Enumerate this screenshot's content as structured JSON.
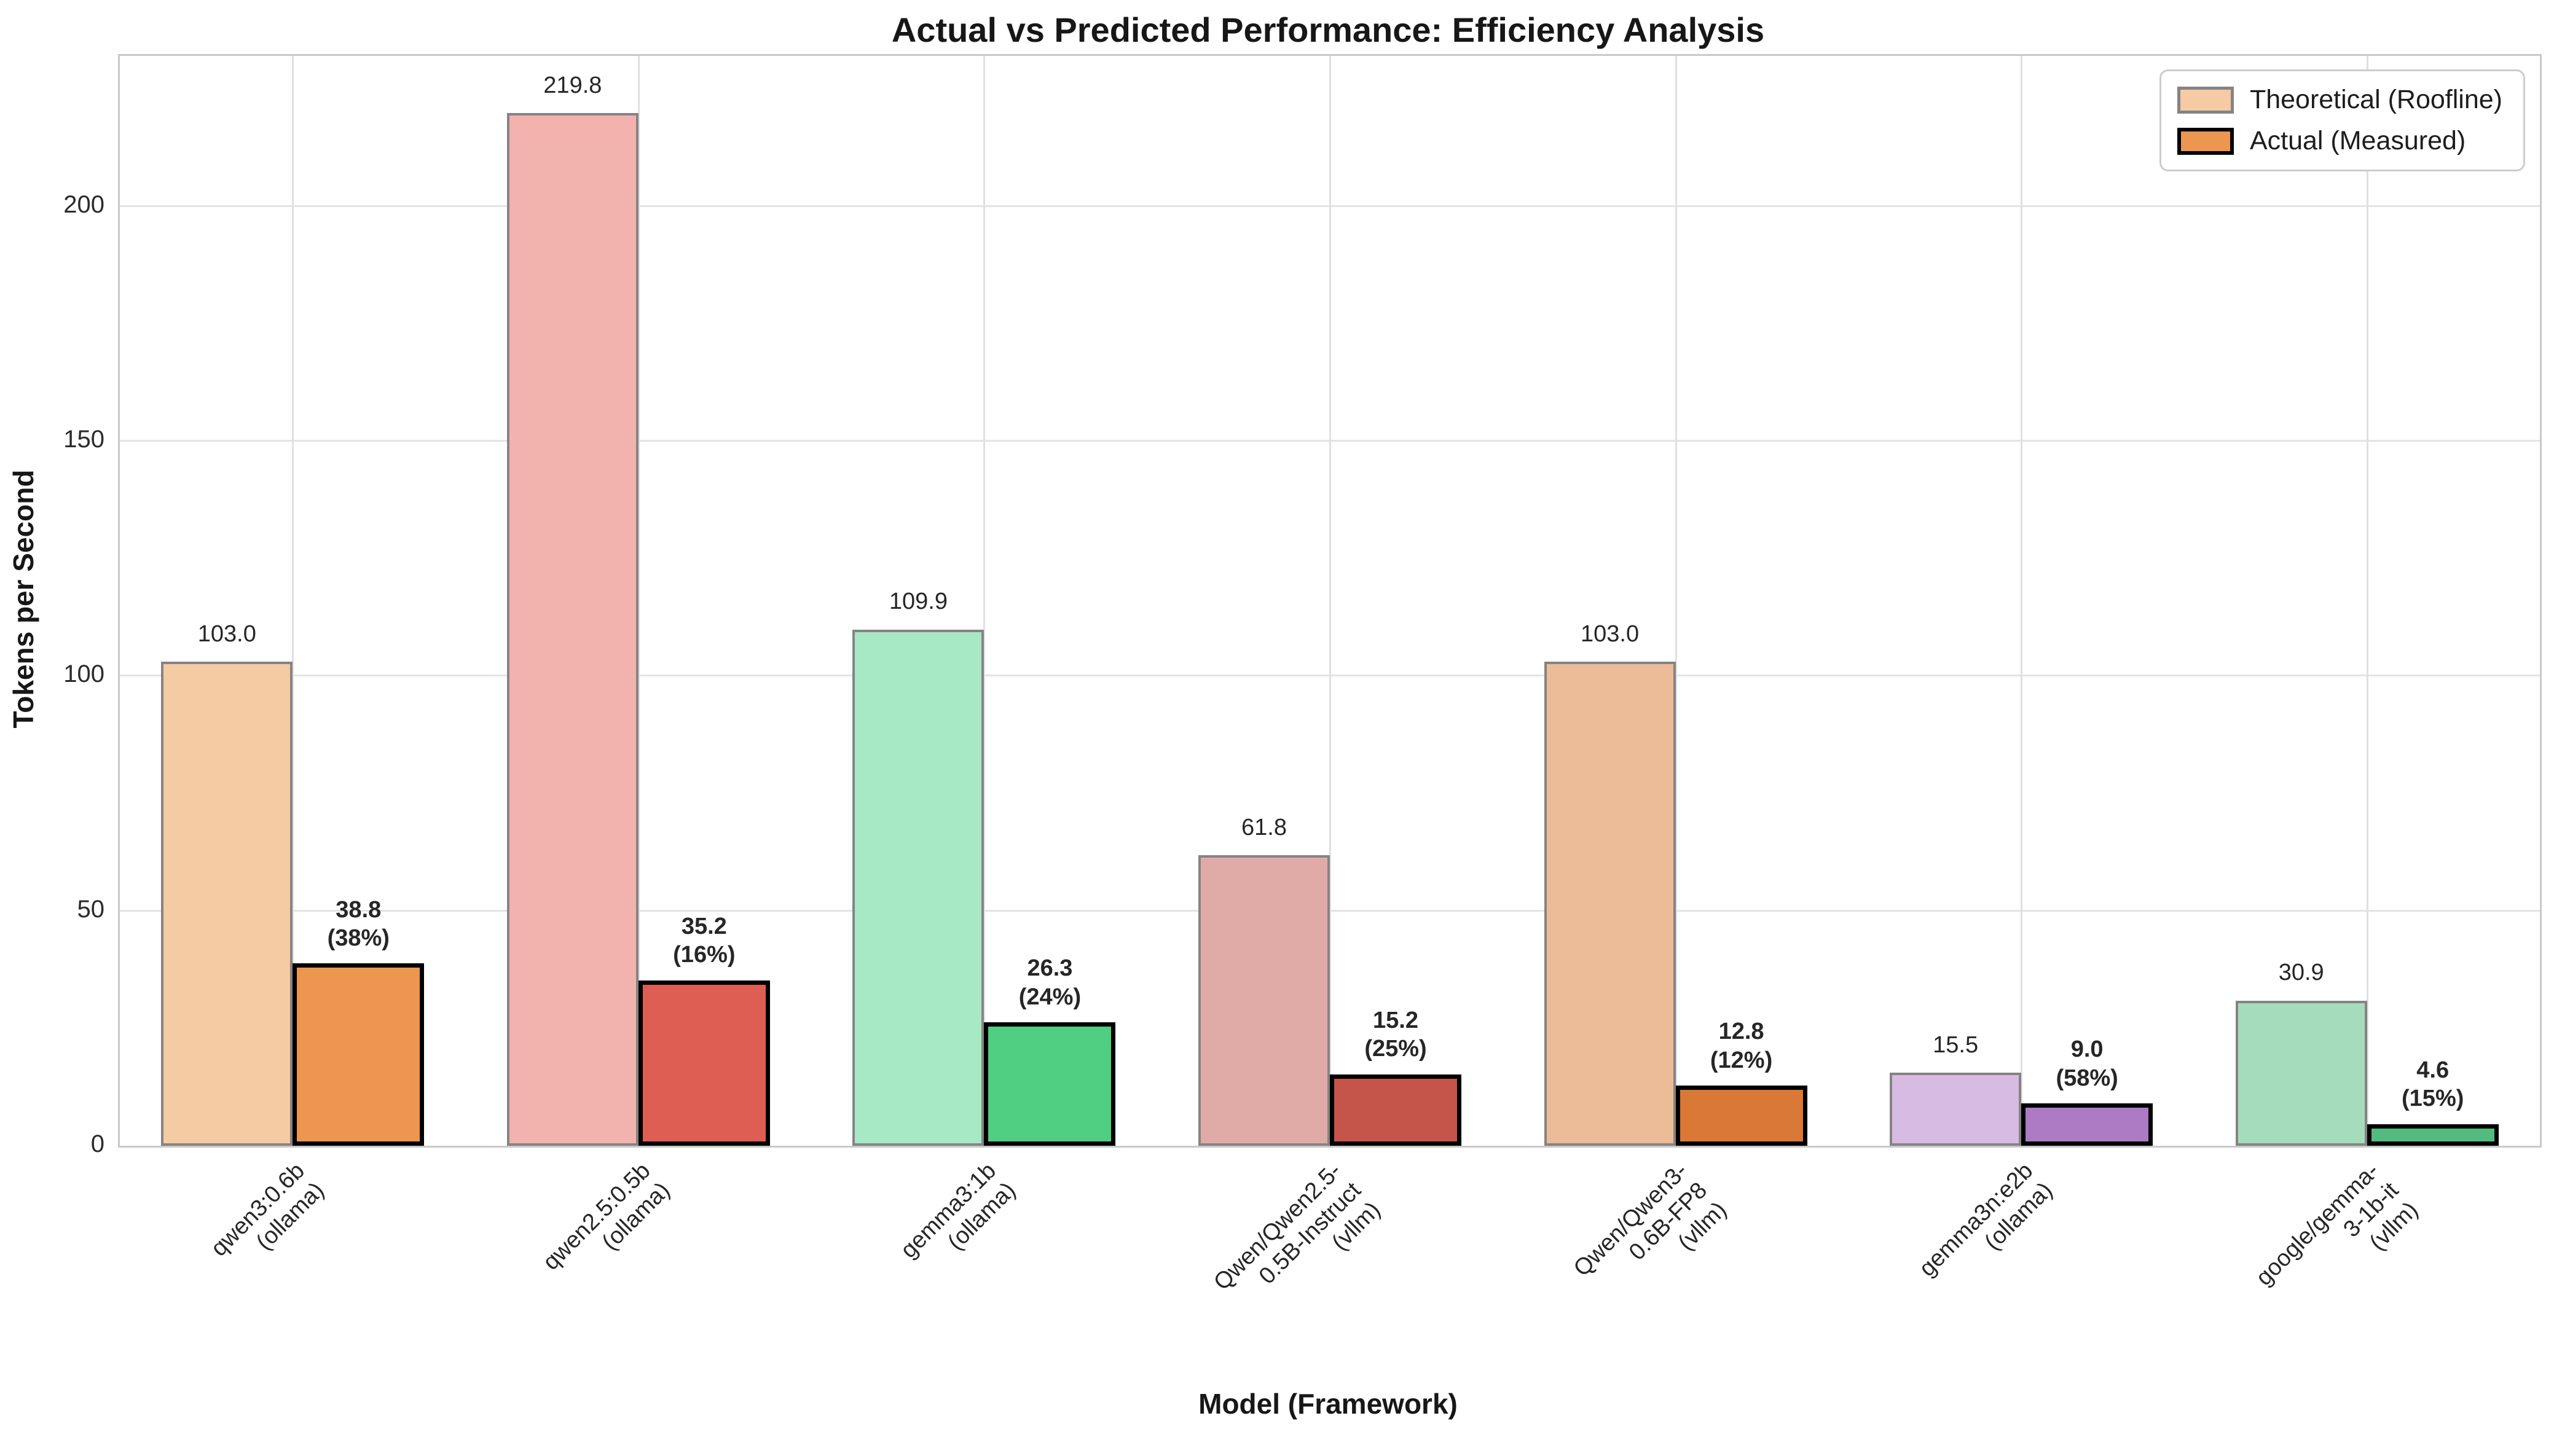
{
  "title": "Actual vs Predicted Performance: Efficiency Analysis",
  "axes": {
    "ylabel": "Tokens per Second",
    "xlabel": "Model (Framework)",
    "yticks": [
      0,
      50,
      100,
      150,
      200
    ],
    "ymax": 232
  },
  "legend": {
    "items": [
      {
        "label": "Theoretical (Roofline)",
        "fill": "#f4cba3",
        "border": "#868383"
      },
      {
        "label": "Actual (Measured)",
        "fill": "#ec964f",
        "border": "#000000"
      }
    ]
  },
  "chart_data": {
    "type": "bar",
    "title": "Actual vs Predicted Performance: Efficiency Analysis",
    "xlabel": "Model (Framework)",
    "ylabel": "Tokens per Second",
    "ylim": [
      0,
      232
    ],
    "grid": true,
    "legend_position": "upper right",
    "categories": [
      {
        "model": "qwen3:0.6b",
        "framework": "(ollama)"
      },
      {
        "model": "qwen2.5:0.5b",
        "framework": "(ollama)"
      },
      {
        "model": "gemma3:1b",
        "framework": "(ollama)"
      },
      {
        "model": "Qwen/Qwen2.5-0.5B-Instruct",
        "framework": "(vllm)"
      },
      {
        "model": "Qwen/Qwen3-0.6B-FP8",
        "framework": "(vllm)"
      },
      {
        "model": "gemma3n:e2b",
        "framework": "(ollama)"
      },
      {
        "model": "google/gemma-3-1b-it",
        "framework": "(vllm)"
      }
    ],
    "series": [
      {
        "name": "Theoretical (Roofline)",
        "values": [
          103.0,
          219.8,
          109.9,
          61.8,
          103.0,
          15.5,
          30.9
        ],
        "value_labels": [
          "103.0",
          "219.8",
          "109.9",
          "61.8",
          "103.0",
          "15.5",
          "30.9"
        ],
        "fills": [
          "#f4cba3",
          "#f2b3ae",
          "#a7e8c5",
          "#e0aba7",
          "#ecbb97",
          "#d8bbe3",
          "#a5dcbb"
        ],
        "border": "#868383"
      },
      {
        "name": "Actual (Measured)",
        "values": [
          38.8,
          35.2,
          26.3,
          15.2,
          12.8,
          9.0,
          4.6
        ],
        "value_labels": [
          "38.8\n(38%)",
          "35.2\n(16%)",
          "26.3\n(24%)",
          "15.2\n(25%)",
          "12.8\n(12%)",
          "9.0\n(58%)",
          "4.6\n(15%)"
        ],
        "fills": [
          "#ec964f",
          "#df5e53",
          "#50ce81",
          "#c5544b",
          "#da7835",
          "#ac7bc4",
          "#52bc7e"
        ],
        "border": "#000000"
      }
    ],
    "efficiency_percent": [
      38,
      16,
      24,
      25,
      12,
      58,
      15
    ]
  }
}
